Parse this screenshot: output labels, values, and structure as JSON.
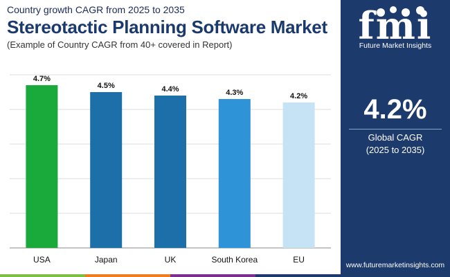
{
  "header": {
    "subtitle": "Country growth CAGR from 2025 to 2035",
    "title": "Stereotactic Planning Software Market",
    "note": "(Example of Country CAGR from 40+ covered in Report)"
  },
  "chart_data": {
    "type": "bar",
    "categories": [
      "USA",
      "Japan",
      "UK",
      "South Korea",
      "EU"
    ],
    "values": [
      4.7,
      4.5,
      4.4,
      4.3,
      4.2
    ],
    "labels": [
      "4.7%",
      "4.5%",
      "4.4%",
      "4.3%",
      "4.2%"
    ],
    "colors": [
      "#1aaa3c",
      "#1c6fa8",
      "#1c6fa8",
      "#2f93d8",
      "#c5e3f5"
    ],
    "ylim": [
      0,
      5
    ],
    "grid_step": 1,
    "gridlines": true,
    "xlabel": "",
    "ylabel": "",
    "title": "Stereotactic Planning Software Market"
  },
  "sidebar": {
    "logo_text": "fmi",
    "tagline": "Future Market Insights",
    "cagr_value": "4.2%",
    "cagr_label": "Global CAGR",
    "cagr_period": "(2025 to 2035)",
    "url": "www.futuremarketinsights.com"
  },
  "colors": {
    "sidebar_bg": "#1d3a6c",
    "title": "#1a3a6e",
    "strip": [
      "#7cbf42",
      "#f07c1e",
      "#7b2f8e",
      "#1d3a6c"
    ]
  }
}
